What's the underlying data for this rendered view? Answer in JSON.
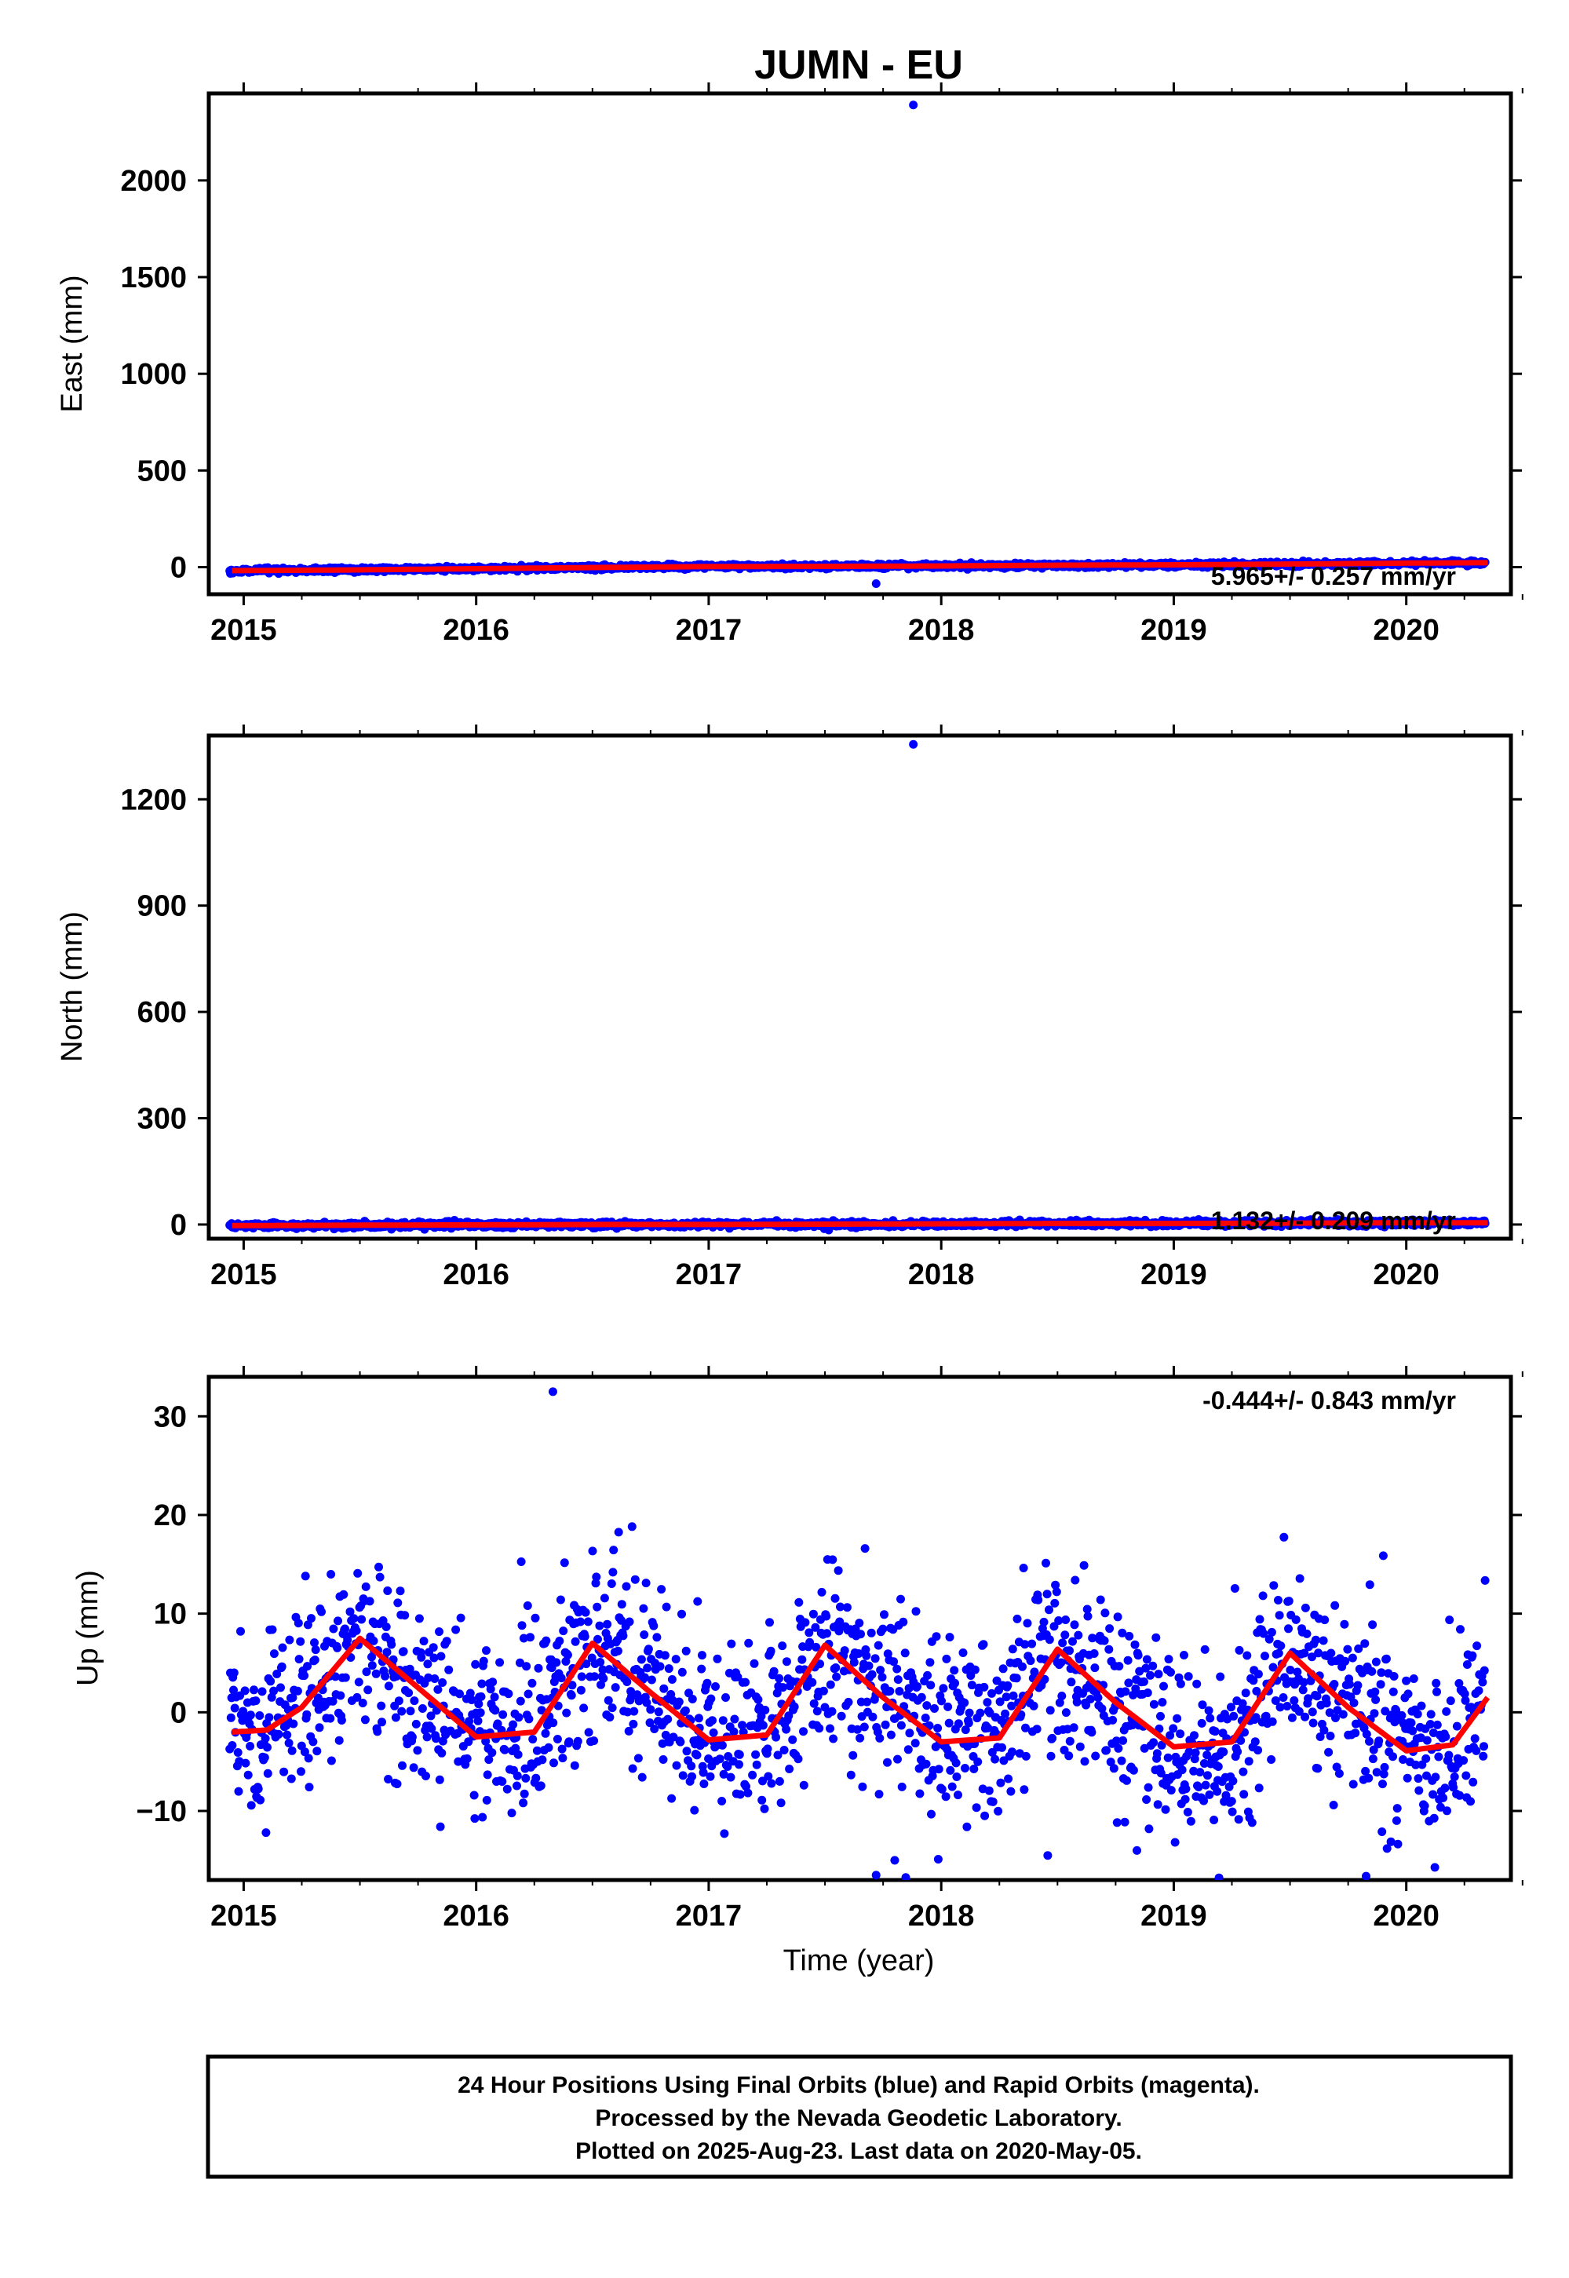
{
  "chart_data": {
    "title": "JUMN - EU",
    "type": "scatter",
    "xlabel": "Time (year)",
    "xlim": [
      2014.85,
      2020.45
    ],
    "x_ticks": [
      2015,
      2016,
      2017,
      2018,
      2019,
      2020
    ],
    "x_tick_labels": [
      "2015",
      "2016",
      "2017",
      "2018",
      "2019",
      "2020"
    ],
    "marker_color": "#0000ff",
    "model_color": "#ff0000",
    "panels": [
      {
        "ylabel": "East (mm)",
        "ylim": [
          -140,
          2450
        ],
        "y_ticks": [
          0,
          500,
          1000,
          1500,
          2000
        ],
        "y_tick_labels": [
          "0",
          "500",
          "1000",
          "1500",
          "2000"
        ],
        "rate_text": "5.965+/- 0.257 mm/yr",
        "rate_position": "bottom-right",
        "outliers": [
          {
            "x": 2017.88,
            "y": 2390
          },
          {
            "x": 2017.72,
            "y": -85
          }
        ],
        "model_points": [
          [
            2014.95,
            -18
          ],
          [
            2015.5,
            -14
          ],
          [
            2016.0,
            -8
          ],
          [
            2016.5,
            -2
          ],
          [
            2017.0,
            3
          ],
          [
            2017.5,
            4
          ],
          [
            2018.0,
            6
          ],
          [
            2018.5,
            10
          ],
          [
            2019.0,
            12
          ],
          [
            2019.5,
            16
          ],
          [
            2020.0,
            21
          ],
          [
            2020.35,
            23
          ]
        ]
      },
      {
        "ylabel": "North (mm)",
        "ylim": [
          -40,
          1380
        ],
        "y_ticks": [
          0,
          300,
          600,
          900,
          1200
        ],
        "y_tick_labels": [
          "0",
          "300",
          "600",
          "900",
          "1200"
        ],
        "rate_text": "1.132+/- 0.209 mm/yr",
        "rate_position": "bottom-right",
        "outliers": [
          {
            "x": 2017.88,
            "y": 1355
          }
        ],
        "model_points": [
          [
            2014.95,
            -3
          ],
          [
            2015.5,
            -2
          ],
          [
            2016.0,
            -1
          ],
          [
            2016.5,
            0
          ],
          [
            2017.0,
            0
          ],
          [
            2017.5,
            1
          ],
          [
            2018.0,
            2
          ],
          [
            2018.5,
            3
          ],
          [
            2019.0,
            3
          ],
          [
            2019.5,
            4
          ],
          [
            2020.0,
            5
          ],
          [
            2020.35,
            5
          ]
        ]
      },
      {
        "ylabel": "Up (mm)",
        "ylim": [
          -17,
          34
        ],
        "y_ticks": [
          -10,
          0,
          10,
          20,
          30
        ],
        "y_tick_labels": [
          "−10",
          "0",
          "10",
          "20",
          "30"
        ],
        "rate_text": "-0.444+/- 0.843 mm/yr",
        "rate_position": "top-right",
        "outliers": [
          {
            "x": 2016.33,
            "y": 32.5
          },
          {
            "x": 2017.72,
            "y": -16.5
          },
          {
            "x": 2017.8,
            "y": -15
          }
        ],
        "model_points": [
          [
            2014.95,
            -2.0
          ],
          [
            2015.1,
            -1.8
          ],
          [
            2015.25,
            0.5
          ],
          [
            2015.5,
            7.5
          ],
          [
            2015.75,
            2.5
          ],
          [
            2016.0,
            -2.5
          ],
          [
            2016.25,
            -2.0
          ],
          [
            2016.5,
            7.0
          ],
          [
            2016.75,
            2.0
          ],
          [
            2017.0,
            -2.8
          ],
          [
            2017.25,
            -2.3
          ],
          [
            2017.5,
            6.8
          ],
          [
            2017.75,
            1.5
          ],
          [
            2018.0,
            -3.0
          ],
          [
            2018.25,
            -2.6
          ],
          [
            2018.5,
            6.4
          ],
          [
            2018.75,
            1.0
          ],
          [
            2019.0,
            -3.5
          ],
          [
            2019.25,
            -3.0
          ],
          [
            2019.5,
            6.0
          ],
          [
            2019.75,
            0.5
          ],
          [
            2020.0,
            -3.9
          ],
          [
            2020.2,
            -3.3
          ],
          [
            2020.35,
            1.5
          ]
        ]
      }
    ]
  },
  "caption": {
    "line1": "24 Hour Positions Using Final Orbits (blue) and Rapid Orbits (magenta).",
    "line2": "Processed by the Nevada Geodetic Laboratory.",
    "line3": "Plotted on 2025-Aug-23. Last data on 2020-May-05."
  }
}
